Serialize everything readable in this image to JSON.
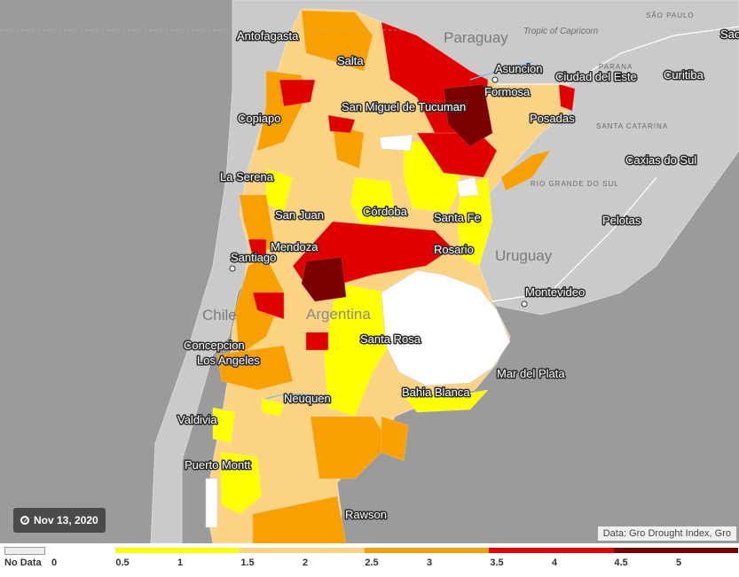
{
  "date": "Nov 13, 2020",
  "attribution": "Data: Gro Drought Index, Gro",
  "countries": {
    "paraguay": "Paraguay",
    "uruguay": "Uruguay",
    "chile": "Chile",
    "argentina": "Argentina"
  },
  "subregions": {
    "sao_paulo": "SÃO PAULO",
    "parana": "PARANA",
    "santa_catarina": "SANTA CATARINA",
    "rio_grande": "RIO GRANDE DO SUL"
  },
  "tropic": "Tropic of Capricorn",
  "cities": {
    "antofagasta": "Antofagasta",
    "salta": "Salta",
    "asuncion": "Asuncion",
    "formosa": "Formosa",
    "ciudad_del_este": "Ciudad del Este",
    "curitiba": "Curitiba",
    "sao": "Sao",
    "san_miguel": "San Miguel de Tucuman",
    "copiapo": "Copiapo",
    "posadas": "Posadas",
    "caxias": "Caxias do Sul",
    "la_serena": "La Serena",
    "san_juan": "San Juan",
    "cordoba": "Córdoba",
    "santa_fe": "Santa Fe",
    "pelotas": "Pelotas",
    "mendoza": "Mendoza",
    "santiago": "Santiago",
    "rosario": "Rosario",
    "montevideo": "Montevideo",
    "santa_rosa": "Santa Rosa",
    "concepcion": "Concepcion",
    "los_angeles": "Los Angeles",
    "mar_del_plata": "Mar del Plata",
    "bahia_blanca": "Bahia Blanca",
    "neuquen": "Neuquen",
    "valdivia": "Valdivia",
    "puerto_montt": "Puerto Montt",
    "rawson": "Rawson"
  },
  "legend": {
    "no_data": "No Data",
    "zero": "0",
    "ticks": [
      "0.5",
      "1",
      "1.5",
      "2",
      "2.5",
      "3",
      "3.5",
      "4",
      "4.5",
      "5"
    ],
    "bands": [
      {
        "from": 0.5,
        "to": 1.5,
        "color": "#ffff00"
      },
      {
        "from": 1.5,
        "to": 2.5,
        "color": "#fcd283"
      },
      {
        "from": 2.5,
        "to": 3.5,
        "color": "#f8a000"
      },
      {
        "from": 3.5,
        "to": 4.5,
        "color": "#e00000"
      },
      {
        "from": 4.5,
        "to": 5.5,
        "color": "#7a0000"
      }
    ]
  },
  "colors": {
    "no_data": "#ffffff",
    "c1": "#ffff00",
    "c2": "#fcd283",
    "c3": "#f8a000",
    "c4": "#e00000",
    "c5": "#7a0000",
    "land": "#c8c8c8",
    "water": "#9a9a9a"
  }
}
